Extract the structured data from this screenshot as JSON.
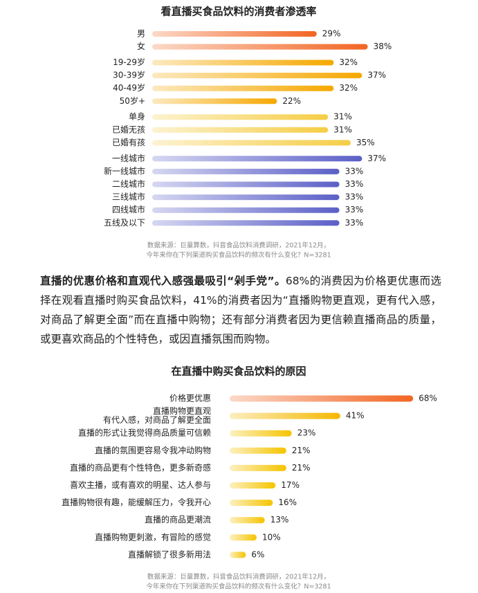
{
  "chart_data": [
    {
      "type": "bar",
      "orientation": "horizontal",
      "title": "看直播买食品饮料的消费者渗透率",
      "categories": [
        "男",
        "女",
        "19-29岁",
        "30-39岁",
        "40-49岁",
        "50岁+",
        "单身",
        "已婚无孩",
        "已婚有孩",
        "一线城市",
        "新一线城市",
        "二线城市",
        "三线城市",
        "四线城市",
        "五线及以下"
      ],
      "values": [
        29,
        38,
        32,
        37,
        32,
        22,
        31,
        31,
        35,
        37,
        33,
        33,
        33,
        33,
        33
      ],
      "value_labels": [
        "29%",
        "38%",
        "32%",
        "37%",
        "32%",
        "22%",
        "31%",
        "31%",
        "35%",
        "37%",
        "33%",
        "33%",
        "33%",
        "33%",
        "33%"
      ],
      "colors": [
        "#f26522",
        "#f26522",
        "#f5a800",
        "#f5a800",
        "#f5a800",
        "#f5a800",
        "#f5cd45",
        "#f5cd45",
        "#f5cd45",
        "#5b5fc7",
        "#5b5fc7",
        "#5b5fc7",
        "#5b5fc7",
        "#5b5fc7",
        "#5b5fc7"
      ],
      "note": [
        "数据来源：巨量算数，抖音食品饮料消费调研，2021年12月，",
        "今年来你在下列渠道购买食品饮料的频次有什么变化？N=3281"
      ]
    },
    {
      "type": "bar",
      "orientation": "horizontal",
      "title": "在直播中购买食品饮料的原因",
      "categories": [
        [
          "价格更优惠"
        ],
        [
          "直播购物更直观",
          "有代入感，对商品了解更全面"
        ],
        [
          "直播的形式让我觉得商品质量可信赖"
        ],
        [
          "直播的氛围更容易令我冲动购物"
        ],
        [
          "直播的商品更有个性特色，更多新奇感"
        ],
        [
          "喜欢主播，或有喜欢的明星、达人参与"
        ],
        [
          "直播购物很有趣，能缓解压力，令我开心"
        ],
        [
          "直播的商品更潮流"
        ],
        [
          "直播购物更刺激，有冒险的感觉"
        ],
        [
          "直播解锁了很多新用法"
        ]
      ],
      "values": [
        68,
        41,
        23,
        21,
        21,
        17,
        16,
        13,
        10,
        6
      ],
      "value_labels": [
        "68%",
        "41%",
        "23%",
        "21%",
        "21%",
        "17%",
        "16%",
        "13%",
        "10%",
        "6%"
      ],
      "colors": [
        "#f26522",
        "#f5b800",
        "#f5c400",
        "#f5c400",
        "#f5c400",
        "#f5c400",
        "#f5c400",
        "#f5c400",
        "#f5c400",
        "#f5c400"
      ],
      "note": [
        "数据来源：巨量算数，抖音食品饮料消费调研，2021年12月，",
        "今年来你在下列渠道购买食品饮料的频次有什么变化？N=3281"
      ]
    }
  ],
  "paragraph": {
    "bold": "直播的优惠价格和直观代入感强最吸引“剁手党”。",
    "text": "68%的消费因为价格更优惠而选择在观看直播时购买食品饮料，41%的消费者因为“直播购物更直观，更有代入感，对商品了解更全面”而在直播中购物；还有部分消费者因为更信赖直播商品的质量，或更喜欢商品的个性特色，或因直播氛围而购物。"
  }
}
